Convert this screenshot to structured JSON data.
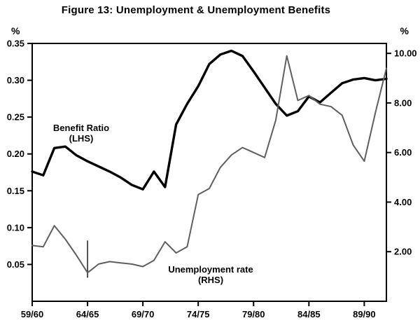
{
  "figure": {
    "title": "Figure 13: Unemployment & Unemployment Benefits",
    "left_axis_unit": "%",
    "right_axis_unit": "%"
  },
  "annotations": {
    "benefit_label": "Benefit Ratio\n(LHS)",
    "unemployment_label": "Unemployment rate\n(RHS)"
  },
  "colors": {
    "frame": "#000000",
    "benefit_line": "#000000",
    "unemployment_line": "#5f5f5f",
    "break_marker": "#2a2a2a",
    "background": "#ffffff"
  },
  "chart_data": {
    "type": "line",
    "title": "Figure 13: Unemployment & Unemployment Benefits",
    "x": [
      "59/60",
      "60/61",
      "61/62",
      "62/63",
      "63/64",
      "64/65",
      "65/66",
      "66/67",
      "67/68",
      "68/69",
      "69/70",
      "70/71",
      "71/72",
      "72/73",
      "73/74",
      "74/75",
      "75/76",
      "76/77",
      "77/78",
      "78/79",
      "79/80",
      "80/81",
      "81/82",
      "82/83",
      "83/84",
      "84/85",
      "85/86",
      "86/87",
      "87/88",
      "88/89",
      "89/90",
      "90/91",
      "91/92"
    ],
    "x_tick_labels": [
      "59/60",
      "64/65",
      "69/70",
      "74/75",
      "79/80",
      "84/85",
      "89/90"
    ],
    "x_tick_indices": [
      0,
      5,
      10,
      15,
      20,
      25,
      30
    ],
    "left_axis": {
      "label": "%",
      "range": [
        0,
        0.35
      ],
      "ticks": [
        0.05,
        0.1,
        0.15,
        0.2,
        0.25,
        0.3,
        0.35
      ],
      "tick_labels": [
        "0.05",
        "0.10",
        "0.15",
        "0.20",
        "0.25",
        "0.30",
        "0.35"
      ]
    },
    "right_axis": {
      "label": "%",
      "range": [
        0,
        10.4
      ],
      "ticks": [
        2,
        4,
        6,
        8,
        10
      ],
      "tick_labels": [
        "2.00",
        "4.00",
        "6.00",
        "8.00",
        "10.00"
      ]
    },
    "legend_position": "annotations-on-plot",
    "grid": false,
    "series": [
      {
        "name": "Benefit Ratio (LHS)",
        "axis": "left",
        "color": "#000000",
        "stroke_width": 3.4,
        "values": [
          0.176,
          0.171,
          0.208,
          0.21,
          0.198,
          0.19,
          0.183,
          0.176,
          0.168,
          0.158,
          0.152,
          0.176,
          0.155,
          0.24,
          0.268,
          0.292,
          0.322,
          0.335,
          0.34,
          0.333,
          0.312,
          0.29,
          0.268,
          0.252,
          0.258,
          0.278,
          0.27,
          0.283,
          0.296,
          0.301,
          0.303,
          0.3,
          0.302
        ]
      },
      {
        "name": "Unemployment rate (RHS)",
        "axis": "right",
        "color": "#5f5f5f",
        "stroke_width": 2,
        "values": [
          2.25,
          2.2,
          3.05,
          2.5,
          1.85,
          1.15,
          1.5,
          1.6,
          1.55,
          1.5,
          1.4,
          1.65,
          2.4,
          1.95,
          2.2,
          4.3,
          4.55,
          5.4,
          5.9,
          6.2,
          6.0,
          5.8,
          7.3,
          9.9,
          8.1,
          8.3,
          7.95,
          7.85,
          7.5,
          6.3,
          5.65,
          7.6,
          9.4
        ]
      }
    ],
    "break_marker": {
      "x_index": 5,
      "y_right_from": 0.95,
      "y_right_to": 2.45
    }
  }
}
